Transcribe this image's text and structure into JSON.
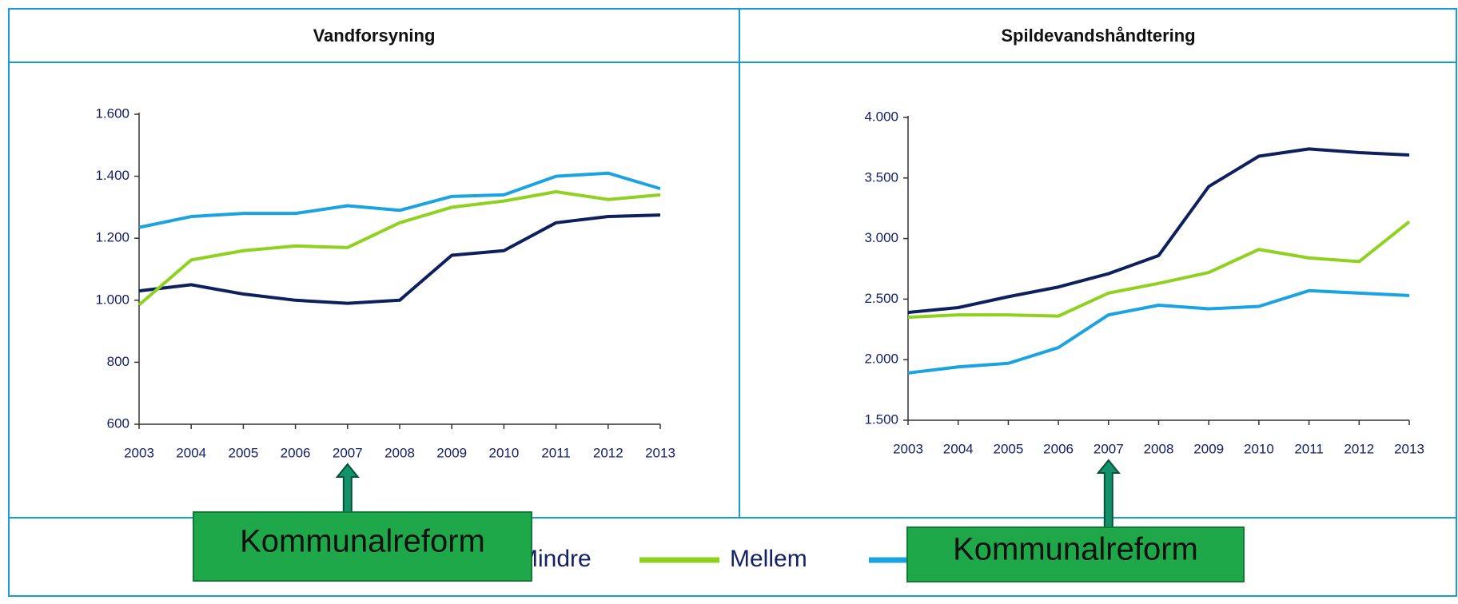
{
  "chart_data": [
    {
      "type": "line",
      "title": "Vandforsyning",
      "x": [
        2003,
        2004,
        2005,
        2006,
        2007,
        2008,
        2009,
        2010,
        2011,
        2012,
        2013
      ],
      "xlim": [
        2003,
        2013
      ],
      "xticks": [
        2003,
        2004,
        2005,
        2006,
        2007,
        2008,
        2009,
        2010,
        2011,
        2012,
        2013
      ],
      "ylim": [
        600,
        1600
      ],
      "yticks": [
        600,
        800,
        {
          "value": 1000,
          "label": "1.000"
        },
        {
          "value": 1200,
          "label": "1.200"
        },
        {
          "value": 1400,
          "label": "1.400"
        },
        {
          "value": 1600,
          "label": "1.600"
        }
      ],
      "series": [
        {
          "name": "Mindre",
          "color": "#0d1f5c",
          "values": [
            1030,
            1050,
            1020,
            1000,
            990,
            1000,
            1145,
            1160,
            1250,
            1270,
            1275
          ]
        },
        {
          "name": "Mellem",
          "color": "#8fd11f",
          "values": [
            985,
            1130,
            1160,
            1175,
            1170,
            1250,
            1300,
            1320,
            1350,
            1325,
            1340
          ]
        },
        {
          "color": "#1aa3e0",
          "values": [
            1235,
            1270,
            1280,
            1280,
            1305,
            1290,
            1335,
            1340,
            1400,
            1410,
            1360
          ]
        }
      ],
      "annotations": [
        {
          "text": "Kommunalreform",
          "x": 2007
        }
      ]
    },
    {
      "type": "line",
      "title": "Spildevandshåndtering",
      "x": [
        2003,
        2004,
        2005,
        2006,
        2007,
        2008,
        2009,
        2010,
        2011,
        2012,
        2013
      ],
      "xlim": [
        2003,
        2013
      ],
      "xticks": [
        2003,
        2004,
        2005,
        2006,
        2007,
        2008,
        2009,
        2010,
        2011,
        2012,
        2013
      ],
      "ylim": [
        1500,
        4000
      ],
      "yticks": [
        {
          "value": 1500,
          "label": "1.500"
        },
        {
          "value": 2000,
          "label": "2.000"
        },
        {
          "value": 2500,
          "label": "2.500"
        },
        {
          "value": 3000,
          "label": "3.000"
        },
        {
          "value": 3500,
          "label": "3.500"
        },
        {
          "value": 4000,
          "label": "4.000"
        }
      ],
      "series": [
        {
          "color": "#0d1f5c",
          "values": [
            2390,
            2430,
            2520,
            2600,
            2710,
            2860,
            3430,
            3680,
            3740,
            3710,
            3690
          ]
        },
        {
          "color": "#8fd11f",
          "values": [
            2350,
            2370,
            2370,
            2360,
            2550,
            2630,
            2720,
            2910,
            2840,
            2810,
            3140
          ]
        },
        {
          "color": "#1aa3e0",
          "values": [
            1890,
            1940,
            1970,
            2100,
            2370,
            2450,
            2420,
            2440,
            2570,
            2550,
            2530
          ]
        }
      ],
      "annotations": [
        {
          "text": "Kommunalreform",
          "x": 2007
        }
      ]
    }
  ]
}
